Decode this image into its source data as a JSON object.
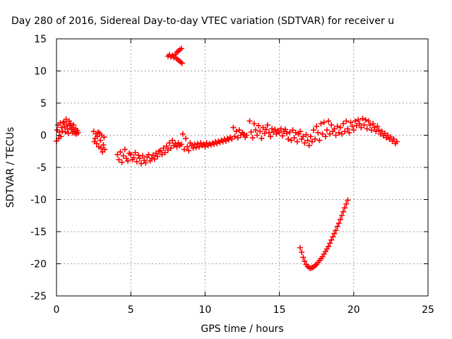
{
  "chart_data": {
    "type": "scatter",
    "title": "Day 280 of 2016, Sidereal Day-to-day VTEC variation (SDTVAR) for receiver u",
    "xlabel": "GPS time / hours",
    "ylabel": "SDTVAR / TECUs",
    "xlim": [
      0,
      25
    ],
    "ylim": [
      -25,
      15
    ],
    "xticks": [
      0,
      5,
      10,
      15,
      20,
      25
    ],
    "yticks": [
      -25,
      -20,
      -15,
      -10,
      -5,
      0,
      5,
      10,
      15
    ],
    "grid": true,
    "legend": "none",
    "marker": "+",
    "marker_color": "#ff0000",
    "series": [
      {
        "points": [
          [
            0.05,
            0.8
          ],
          [
            0.1,
            1.6
          ],
          [
            0.15,
            -0.5
          ],
          [
            0.2,
            0.5
          ],
          [
            0.25,
            1.9
          ],
          [
            0.3,
            -0.2
          ],
          [
            0.35,
            1.2
          ],
          [
            0.4,
            0.6
          ],
          [
            0.45,
            1.9
          ],
          [
            0.5,
            2.1
          ],
          [
            0.55,
            1.3
          ],
          [
            0.6,
            0.5
          ],
          [
            0.65,
            2.5
          ],
          [
            0.7,
            1.6
          ],
          [
            0.75,
            1.0
          ],
          [
            0.8,
            0.3
          ],
          [
            0.85,
            2.2
          ],
          [
            0.9,
            1.5
          ],
          [
            0.95,
            1.8
          ],
          [
            1.0,
            0.9
          ],
          [
            1.05,
            1.2
          ],
          [
            1.1,
            0.4
          ],
          [
            1.15,
            1.6
          ],
          [
            1.2,
            0.6
          ],
          [
            1.25,
            0.3
          ],
          [
            1.3,
            1.0
          ],
          [
            1.35,
            0.2
          ],
          [
            1.4,
            0.7
          ],
          [
            1.45,
            0.4
          ],
          [
            0.0,
            -0.9
          ],
          [
            2.5,
            0.6
          ],
          [
            2.55,
            -1.0
          ],
          [
            2.6,
            -0.5
          ],
          [
            2.65,
            0.2
          ],
          [
            2.7,
            -1.3
          ],
          [
            2.75,
            -0.2
          ],
          [
            2.8,
            0.5
          ],
          [
            2.85,
            -1.8
          ],
          [
            2.9,
            0.3
          ],
          [
            2.95,
            -0.8
          ],
          [
            3.0,
            -2.0
          ],
          [
            3.05,
            0.0
          ],
          [
            3.1,
            -2.6
          ],
          [
            3.15,
            -1.5
          ],
          [
            3.2,
            -0.3
          ],
          [
            3.25,
            -2.2
          ],
          [
            4.1,
            -3.0
          ],
          [
            4.2,
            -3.8
          ],
          [
            4.3,
            -2.6
          ],
          [
            4.4,
            -4.2
          ],
          [
            4.5,
            -3.2
          ],
          [
            4.6,
            -2.2
          ],
          [
            4.7,
            -3.6
          ],
          [
            4.8,
            -4.0
          ],
          [
            4.9,
            -2.8
          ],
          [
            5.0,
            -3.0
          ],
          [
            5.1,
            -3.8
          ],
          [
            5.2,
            -3.5
          ],
          [
            5.3,
            -2.7
          ],
          [
            5.4,
            -4.1
          ],
          [
            5.5,
            -3.1
          ],
          [
            5.6,
            -3.6
          ],
          [
            5.7,
            -4.4
          ],
          [
            5.8,
            -3.2
          ],
          [
            5.9,
            -3.9
          ],
          [
            6.0,
            -4.3
          ],
          [
            6.1,
            -3.4
          ],
          [
            6.2,
            -3.0
          ],
          [
            6.3,
            -4.0
          ],
          [
            6.4,
            -3.6
          ],
          [
            6.5,
            -3.1
          ],
          [
            6.6,
            -3.7
          ],
          [
            6.7,
            -2.8
          ],
          [
            6.8,
            -3.3
          ],
          [
            6.9,
            -2.5
          ],
          [
            7.0,
            -2.4
          ],
          [
            7.1,
            -3.0
          ],
          [
            7.2,
            -2.0
          ],
          [
            7.3,
            -2.7
          ],
          [
            7.4,
            -1.7
          ],
          [
            7.5,
            -2.3
          ],
          [
            7.6,
            -1.2
          ],
          [
            7.7,
            -2.0
          ],
          [
            7.8,
            -0.8
          ],
          [
            7.9,
            -1.6
          ],
          [
            8.0,
            -1.3
          ],
          [
            8.1,
            -1.8
          ],
          [
            8.2,
            -1.2
          ],
          [
            8.3,
            -1.6
          ],
          [
            8.4,
            -1.4
          ],
          [
            8.5,
            0.2
          ],
          [
            8.6,
            -2.2
          ],
          [
            8.7,
            -0.5
          ],
          [
            8.8,
            -1.8
          ],
          [
            8.9,
            -2.4
          ],
          [
            9.0,
            -1.2
          ],
          [
            9.1,
            -1.6
          ],
          [
            9.2,
            -2.0
          ],
          [
            9.3,
            -1.4
          ],
          [
            9.4,
            -1.9
          ],
          [
            9.5,
            -1.3
          ],
          [
            9.6,
            -1.8
          ],
          [
            9.7,
            -1.2
          ],
          [
            9.8,
            -1.6
          ],
          [
            9.9,
            -1.4
          ],
          [
            10.0,
            -1.8
          ],
          [
            10.1,
            -1.2
          ],
          [
            10.2,
            -1.6
          ],
          [
            10.3,
            -1.3
          ],
          [
            10.4,
            -1.5
          ],
          [
            10.5,
            -1.2
          ],
          [
            10.6,
            -1.4
          ],
          [
            10.7,
            -1.0
          ],
          [
            10.8,
            -1.3
          ],
          [
            10.9,
            -0.9
          ],
          [
            11.0,
            -1.1
          ],
          [
            11.1,
            -0.8
          ],
          [
            11.2,
            -1.0
          ],
          [
            11.3,
            -0.6
          ],
          [
            11.4,
            -0.9
          ],
          [
            11.5,
            -0.5
          ],
          [
            11.6,
            -0.7
          ],
          [
            11.7,
            -0.3
          ],
          [
            11.8,
            -0.6
          ],
          [
            11.9,
            1.2
          ],
          [
            12.0,
            -0.2
          ],
          [
            12.1,
            0.6
          ],
          [
            12.2,
            -0.4
          ],
          [
            12.3,
            0.8
          ],
          [
            12.4,
            0.0
          ],
          [
            12.5,
            0.4
          ],
          [
            12.6,
            0.2
          ],
          [
            12.7,
            -0.3
          ],
          [
            12.8,
            0.0
          ],
          [
            13.0,
            2.2
          ],
          [
            13.1,
            0.5
          ],
          [
            13.2,
            -0.4
          ],
          [
            13.3,
            1.8
          ],
          [
            13.4,
            0.8
          ],
          [
            13.5,
            0.0
          ],
          [
            13.6,
            1.5
          ],
          [
            13.7,
            0.6
          ],
          [
            13.8,
            -0.5
          ],
          [
            13.9,
            1.2
          ],
          [
            14.0,
            0.3
          ],
          [
            14.1,
            0.9
          ],
          [
            14.2,
            1.6
          ],
          [
            14.3,
            0.4
          ],
          [
            14.4,
            -0.2
          ],
          [
            14.5,
            1.0
          ],
          [
            14.6,
            0.5
          ],
          [
            14.7,
            0.9
          ],
          [
            14.8,
            0.2
          ],
          [
            14.9,
            0.7
          ],
          [
            15.0,
            0.4
          ],
          [
            15.1,
            1.0
          ],
          [
            15.2,
            -0.1
          ],
          [
            15.3,
            0.6
          ],
          [
            15.4,
            0.9
          ],
          [
            15.5,
            0.3
          ],
          [
            15.6,
            -0.6
          ],
          [
            15.7,
            0.5
          ],
          [
            15.8,
            -0.8
          ],
          [
            15.9,
            0.8
          ],
          [
            16.0,
            -0.4
          ],
          [
            16.1,
            0.4
          ],
          [
            16.2,
            -1.0
          ],
          [
            16.3,
            0.2
          ],
          [
            16.4,
            0.6
          ],
          [
            16.5,
            -0.6
          ],
          [
            16.6,
            -0.2
          ],
          [
            16.7,
            -1.2
          ],
          [
            16.8,
            0.1
          ],
          [
            16.9,
            -0.8
          ],
          [
            17.0,
            -1.6
          ],
          [
            17.1,
            -0.2
          ],
          [
            17.2,
            -1.0
          ],
          [
            17.3,
            0.8
          ],
          [
            17.4,
            -0.6
          ],
          [
            17.5,
            1.4
          ],
          [
            17.6,
            0.4
          ],
          [
            17.7,
            -0.8
          ],
          [
            17.8,
            1.8
          ],
          [
            17.9,
            0.2
          ],
          [
            18.0,
            2.0
          ],
          [
            18.1,
            -0.2
          ],
          [
            18.2,
            0.8
          ],
          [
            18.3,
            2.2
          ],
          [
            18.4,
            0.2
          ],
          [
            18.5,
            1.6
          ],
          [
            18.6,
            0.6
          ],
          [
            18.7,
            1.0
          ],
          [
            18.8,
            0.0
          ],
          [
            18.9,
            1.4
          ],
          [
            19.0,
            0.4
          ],
          [
            19.1,
            1.2
          ],
          [
            19.2,
            0.2
          ],
          [
            19.3,
            1.8
          ],
          [
            19.4,
            0.6
          ],
          [
            19.5,
            2.2
          ],
          [
            19.6,
            1.0
          ],
          [
            19.7,
            0.4
          ],
          [
            19.8,
            2.0
          ],
          [
            19.9,
            1.4
          ],
          [
            20.0,
            0.8
          ],
          [
            20.1,
            2.2
          ],
          [
            20.2,
            1.5
          ],
          [
            20.3,
            2.4
          ],
          [
            20.4,
            1.8
          ],
          [
            20.5,
            1.2
          ],
          [
            20.6,
            2.6
          ],
          [
            20.7,
            1.6
          ],
          [
            20.8,
            2.4
          ],
          [
            20.9,
            1.0
          ],
          [
            21.0,
            2.2
          ],
          [
            21.1,
            1.6
          ],
          [
            21.2,
            0.8
          ],
          [
            21.3,
            1.8
          ],
          [
            21.4,
            1.2
          ],
          [
            21.5,
            0.6
          ],
          [
            21.6,
            1.4
          ],
          [
            21.7,
            0.8
          ],
          [
            21.8,
            0.2
          ],
          [
            21.9,
            0.6
          ],
          [
            22.0,
            -0.1
          ],
          [
            22.1,
            0.3
          ],
          [
            22.2,
            -0.4
          ],
          [
            22.3,
            0.0
          ],
          [
            22.4,
            -0.6
          ],
          [
            22.5,
            -0.3
          ],
          [
            22.6,
            -0.9
          ],
          [
            22.7,
            -0.6
          ],
          [
            22.8,
            -1.3
          ],
          [
            22.9,
            -1.0
          ],
          [
            7.5,
            12.3
          ],
          [
            7.6,
            12.5
          ],
          [
            7.7,
            12.2
          ],
          [
            7.8,
            12.4
          ],
          [
            7.9,
            12.1
          ],
          [
            8.0,
            12.6
          ],
          [
            8.05,
            12.0
          ],
          [
            8.1,
            12.9
          ],
          [
            8.15,
            11.8
          ],
          [
            8.2,
            13.1
          ],
          [
            8.25,
            11.6
          ],
          [
            8.3,
            13.3
          ],
          [
            8.35,
            11.4
          ],
          [
            8.4,
            13.5
          ],
          [
            8.45,
            11.2
          ],
          [
            16.4,
            -17.5
          ],
          [
            16.5,
            -18.2
          ],
          [
            16.6,
            -19.0
          ],
          [
            16.7,
            -19.6
          ],
          [
            16.8,
            -20.1
          ],
          [
            16.9,
            -20.4
          ],
          [
            17.0,
            -20.6
          ],
          [
            17.1,
            -20.7
          ],
          [
            17.2,
            -20.6
          ],
          [
            17.3,
            -20.5
          ],
          [
            17.4,
            -20.3
          ],
          [
            17.5,
            -20.1
          ],
          [
            17.6,
            -19.8
          ],
          [
            17.7,
            -19.5
          ],
          [
            17.8,
            -19.2
          ],
          [
            17.9,
            -18.9
          ],
          [
            18.0,
            -18.5
          ],
          [
            18.1,
            -18.1
          ],
          [
            18.2,
            -17.7
          ],
          [
            18.3,
            -17.3
          ],
          [
            18.4,
            -16.8
          ],
          [
            18.5,
            -16.3
          ],
          [
            18.6,
            -15.8
          ],
          [
            18.7,
            -15.3
          ],
          [
            18.8,
            -14.8
          ],
          [
            18.9,
            -14.2
          ],
          [
            19.0,
            -13.7
          ],
          [
            19.1,
            -13.1
          ],
          [
            19.2,
            -12.5
          ],
          [
            19.3,
            -11.9
          ],
          [
            19.4,
            -11.3
          ],
          [
            19.5,
            -10.7
          ],
          [
            19.6,
            -10.1
          ]
        ]
      }
    ]
  }
}
